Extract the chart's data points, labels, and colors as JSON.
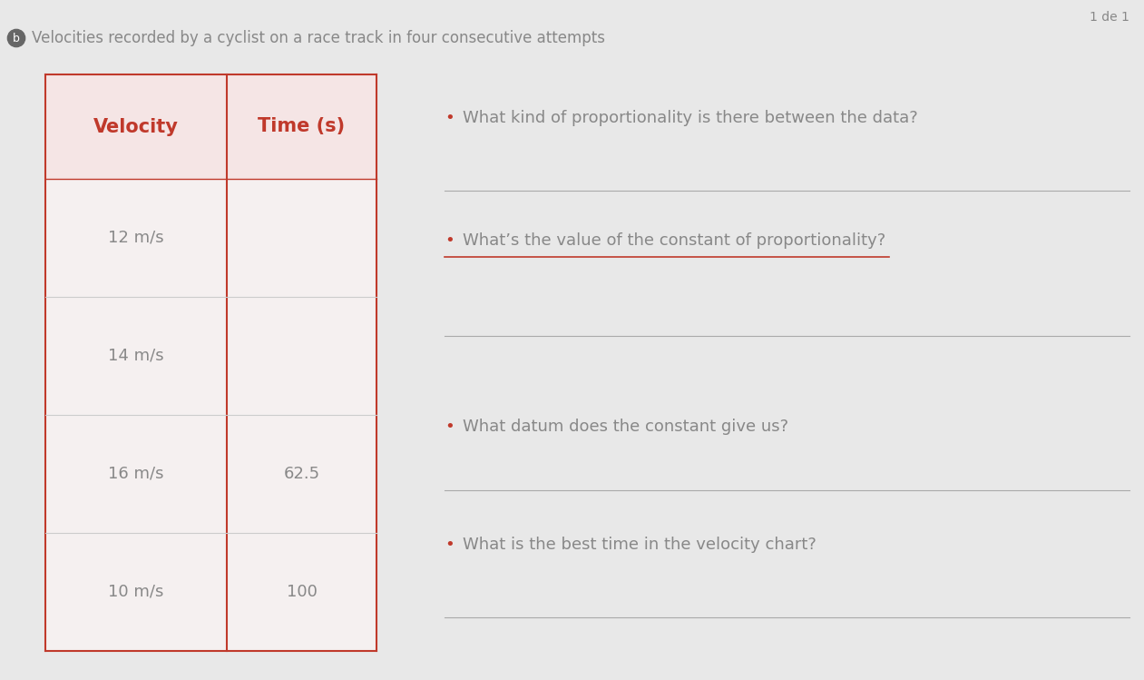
{
  "background_color": "#e8e8e8",
  "page_label": "1 de 1",
  "title_text": "Velocities recorded by a cyclist on a race track in four consecutive attempts",
  "title_fontsize": 12,
  "title_color": "#888888",
  "table": {
    "col1_header": "Velocity",
    "col2_header": "Time (s)",
    "header_color": "#c0392b",
    "header_bg": "#f5e5e5",
    "cell_bg": "#f5f0f0",
    "border_color": "#c0392b",
    "row_line_color": "#cccccc",
    "rows": [
      {
        "velocity": "12 m/s",
        "time": ""
      },
      {
        "velocity": "14 m/s",
        "time": ""
      },
      {
        "velocity": "16 m/s",
        "time": "62.5"
      },
      {
        "velocity": "10 m/s",
        "time": "100"
      }
    ],
    "cell_text_color": "#888888",
    "cell_fontsize": 13,
    "header_fontsize": 15
  },
  "questions": [
    {
      "bullet": "•",
      "text": "What kind of proportionality is there between the data?"
    },
    {
      "bullet": "•",
      "text": "What’s the value of the constant of proportionality?"
    },
    {
      "bullet": "•",
      "text": "What datum does the constant give us?"
    },
    {
      "bullet": "•",
      "text": "What is the best time in the velocity chart?"
    }
  ],
  "question_text_color": "#888888",
  "question_fontsize": 13,
  "answer_line_color": "#aaaaaa",
  "red_underline_color": "#c0392b",
  "bullet_color": "#c0392b"
}
